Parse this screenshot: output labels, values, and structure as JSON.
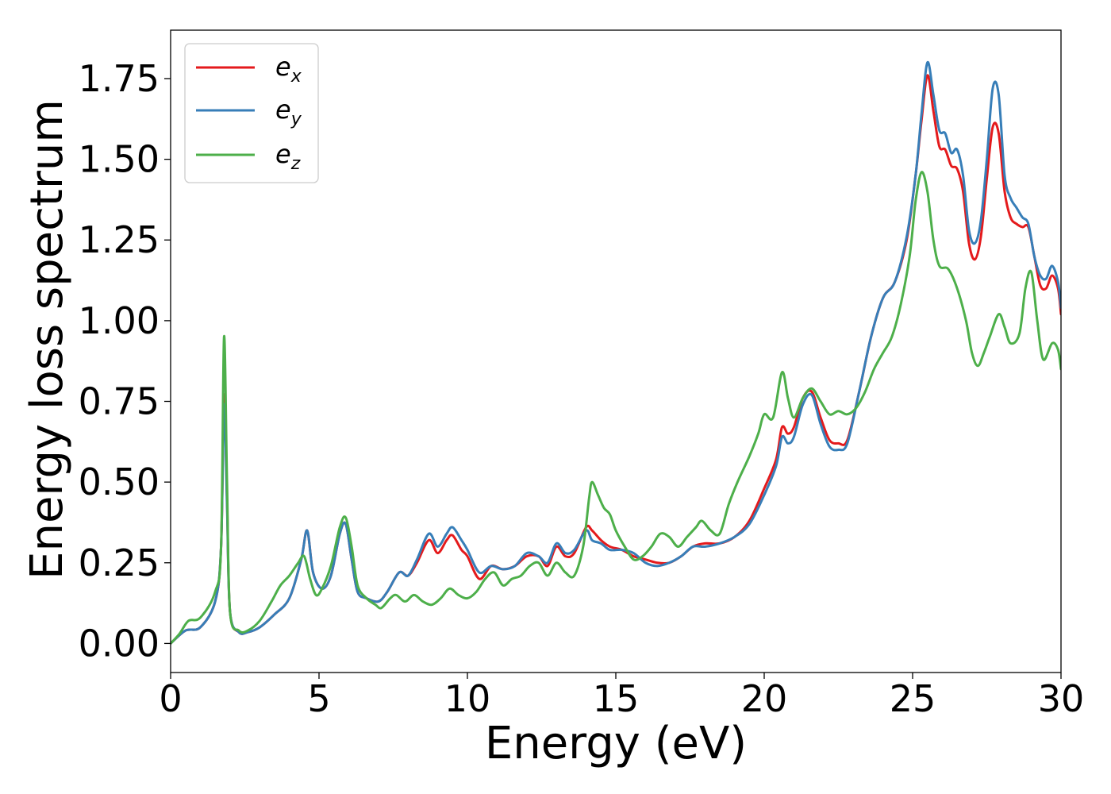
{
  "chart_data": {
    "type": "line",
    "xlabel": "Energy (eV)",
    "ylabel": "Energy loss spectrum",
    "xlim": [
      0,
      30
    ],
    "ylim": [
      -0.09,
      1.9
    ],
    "xticks": [
      0,
      5,
      10,
      15,
      20,
      25,
      30
    ],
    "xtick_labels": [
      "0",
      "5",
      "10",
      "15",
      "20",
      "25",
      "30"
    ],
    "yticks": [
      0,
      0.25,
      0.5,
      0.75,
      1.0,
      1.25,
      1.5,
      1.75
    ],
    "ytick_labels": [
      "0.00",
      "0.25",
      "0.50",
      "0.75",
      "1.00",
      "1.25",
      "1.50",
      "1.75"
    ],
    "grid": false,
    "legend_position": "top-left",
    "series": [
      {
        "name": "e_x",
        "legend_base": "e",
        "legend_sub": "x",
        "color": "#e41a1c",
        "x": [
          0,
          0.5,
          1.0,
          1.5,
          1.7,
          1.8,
          1.9,
          2.0,
          2.3,
          2.6,
          3.0,
          3.5,
          4.0,
          4.4,
          4.6,
          4.8,
          5.1,
          5.4,
          5.7,
          5.9,
          6.1,
          6.3,
          6.6,
          7.0,
          7.3,
          7.7,
          8.0,
          8.3,
          8.7,
          9.0,
          9.3,
          9.5,
          9.8,
          10.0,
          10.4,
          10.8,
          11.2,
          11.6,
          12.0,
          12.4,
          12.7,
          13.0,
          13.3,
          13.6,
          14.0,
          14.2,
          14.5,
          14.8,
          15.2,
          15.6,
          16.0,
          16.4,
          16.8,
          17.2,
          17.6,
          18.0,
          18.5,
          19.0,
          19.5,
          20.0,
          20.4,
          20.6,
          20.8,
          21.0,
          21.3,
          21.6,
          21.9,
          22.2,
          22.5,
          22.8,
          23.2,
          23.6,
          24.0,
          24.4,
          24.8,
          25.1,
          25.3,
          25.5,
          25.7,
          25.9,
          26.1,
          26.3,
          26.5,
          26.7,
          26.9,
          27.1,
          27.3,
          27.5,
          27.7,
          27.9,
          28.1,
          28.3,
          28.5,
          28.7,
          28.9,
          29.1,
          29.3,
          29.5,
          29.7,
          29.9,
          30.0
        ],
        "y": [
          0.0,
          0.04,
          0.05,
          0.13,
          0.3,
          0.77,
          0.45,
          0.1,
          0.035,
          0.035,
          0.05,
          0.09,
          0.14,
          0.26,
          0.35,
          0.22,
          0.17,
          0.21,
          0.34,
          0.37,
          0.26,
          0.16,
          0.14,
          0.13,
          0.16,
          0.22,
          0.21,
          0.25,
          0.32,
          0.28,
          0.32,
          0.335,
          0.29,
          0.27,
          0.2,
          0.24,
          0.23,
          0.24,
          0.27,
          0.27,
          0.24,
          0.3,
          0.27,
          0.28,
          0.36,
          0.35,
          0.32,
          0.3,
          0.29,
          0.27,
          0.26,
          0.25,
          0.25,
          0.27,
          0.3,
          0.31,
          0.31,
          0.33,
          0.38,
          0.48,
          0.57,
          0.67,
          0.65,
          0.67,
          0.76,
          0.78,
          0.7,
          0.63,
          0.62,
          0.63,
          0.78,
          0.95,
          1.07,
          1.12,
          1.25,
          1.45,
          1.62,
          1.76,
          1.65,
          1.54,
          1.53,
          1.48,
          1.47,
          1.4,
          1.24,
          1.19,
          1.26,
          1.44,
          1.6,
          1.58,
          1.4,
          1.32,
          1.3,
          1.29,
          1.29,
          1.2,
          1.11,
          1.1,
          1.14,
          1.1,
          1.02
        ]
      },
      {
        "name": "e_y",
        "legend_base": "e",
        "legend_sub": "y",
        "color": "#377eb8",
        "x": [
          0,
          0.5,
          1.0,
          1.5,
          1.7,
          1.8,
          1.9,
          2.0,
          2.3,
          2.6,
          3.0,
          3.5,
          4.0,
          4.4,
          4.6,
          4.8,
          5.1,
          5.4,
          5.7,
          5.9,
          6.1,
          6.3,
          6.6,
          7.0,
          7.3,
          7.7,
          8.0,
          8.3,
          8.7,
          9.0,
          9.3,
          9.5,
          9.8,
          10.0,
          10.4,
          10.8,
          11.2,
          11.6,
          12.0,
          12.4,
          12.7,
          13.0,
          13.3,
          13.6,
          14.0,
          14.2,
          14.5,
          14.8,
          15.2,
          15.6,
          16.0,
          16.4,
          16.8,
          17.2,
          17.6,
          18.0,
          18.5,
          19.0,
          19.5,
          20.0,
          20.4,
          20.6,
          20.8,
          21.0,
          21.3,
          21.6,
          21.9,
          22.2,
          22.5,
          22.8,
          23.2,
          23.6,
          24.0,
          24.4,
          24.8,
          25.1,
          25.3,
          25.5,
          25.7,
          25.9,
          26.1,
          26.3,
          26.5,
          26.7,
          26.9,
          27.1,
          27.3,
          27.5,
          27.7,
          27.9,
          28.1,
          28.3,
          28.5,
          28.7,
          28.9,
          29.1,
          29.3,
          29.5,
          29.7,
          29.9,
          30.0
        ],
        "y": [
          0.0,
          0.04,
          0.05,
          0.13,
          0.3,
          0.74,
          0.43,
          0.1,
          0.035,
          0.035,
          0.05,
          0.09,
          0.14,
          0.26,
          0.35,
          0.22,
          0.17,
          0.21,
          0.34,
          0.37,
          0.26,
          0.16,
          0.14,
          0.13,
          0.16,
          0.22,
          0.21,
          0.26,
          0.34,
          0.3,
          0.34,
          0.36,
          0.32,
          0.29,
          0.22,
          0.24,
          0.23,
          0.24,
          0.28,
          0.27,
          0.25,
          0.31,
          0.28,
          0.29,
          0.35,
          0.32,
          0.31,
          0.29,
          0.29,
          0.28,
          0.25,
          0.24,
          0.25,
          0.27,
          0.3,
          0.3,
          0.31,
          0.33,
          0.37,
          0.46,
          0.55,
          0.64,
          0.62,
          0.64,
          0.74,
          0.77,
          0.68,
          0.61,
          0.6,
          0.62,
          0.78,
          0.95,
          1.07,
          1.12,
          1.26,
          1.45,
          1.64,
          1.8,
          1.7,
          1.59,
          1.58,
          1.52,
          1.53,
          1.45,
          1.28,
          1.24,
          1.31,
          1.5,
          1.72,
          1.7,
          1.45,
          1.38,
          1.35,
          1.32,
          1.3,
          1.2,
          1.14,
          1.13,
          1.17,
          1.12,
          1.04
        ]
      },
      {
        "name": "e_z",
        "legend_base": "e",
        "legend_sub": "z",
        "color": "#4daf4a",
        "x": [
          0,
          0.3,
          0.6,
          1.0,
          1.5,
          1.7,
          1.8,
          1.9,
          2.0,
          2.3,
          2.6,
          3.0,
          3.4,
          3.7,
          4.0,
          4.3,
          4.5,
          4.7,
          4.9,
          5.1,
          5.4,
          5.7,
          5.9,
          6.1,
          6.3,
          6.6,
          6.9,
          7.1,
          7.4,
          7.6,
          7.9,
          8.2,
          8.5,
          8.8,
          9.1,
          9.4,
          9.7,
          10.0,
          10.3,
          10.6,
          10.9,
          11.2,
          11.5,
          11.8,
          12.1,
          12.4,
          12.7,
          13.0,
          13.3,
          13.6,
          13.9,
          14.1,
          14.2,
          14.4,
          14.6,
          14.8,
          15.0,
          15.3,
          15.6,
          15.9,
          16.2,
          16.5,
          16.8,
          17.1,
          17.4,
          17.7,
          17.9,
          18.2,
          18.5,
          18.8,
          19.1,
          19.5,
          19.8,
          20.0,
          20.3,
          20.6,
          20.8,
          21.0,
          21.3,
          21.6,
          21.9,
          22.2,
          22.5,
          22.8,
          23.1,
          23.4,
          23.7,
          24.0,
          24.3,
          24.6,
          24.9,
          25.1,
          25.3,
          25.5,
          25.7,
          25.9,
          26.2,
          26.5,
          26.8,
          27.0,
          27.2,
          27.4,
          27.6,
          27.9,
          28.1,
          28.3,
          28.6,
          28.8,
          29.0,
          29.2,
          29.4,
          29.7,
          29.9,
          30.0
        ],
        "y": [
          0.0,
          0.03,
          0.07,
          0.08,
          0.16,
          0.3,
          0.95,
          0.5,
          0.1,
          0.04,
          0.04,
          0.07,
          0.13,
          0.18,
          0.21,
          0.25,
          0.27,
          0.2,
          0.15,
          0.17,
          0.24,
          0.36,
          0.39,
          0.3,
          0.18,
          0.14,
          0.12,
          0.11,
          0.14,
          0.15,
          0.13,
          0.15,
          0.13,
          0.12,
          0.14,
          0.17,
          0.15,
          0.14,
          0.16,
          0.2,
          0.22,
          0.18,
          0.2,
          0.21,
          0.24,
          0.25,
          0.21,
          0.25,
          0.22,
          0.21,
          0.3,
          0.45,
          0.5,
          0.46,
          0.42,
          0.4,
          0.35,
          0.3,
          0.26,
          0.27,
          0.3,
          0.34,
          0.33,
          0.3,
          0.33,
          0.36,
          0.38,
          0.35,
          0.34,
          0.43,
          0.5,
          0.58,
          0.65,
          0.71,
          0.7,
          0.84,
          0.76,
          0.7,
          0.76,
          0.79,
          0.75,
          0.71,
          0.72,
          0.71,
          0.73,
          0.78,
          0.85,
          0.9,
          0.95,
          1.05,
          1.2,
          1.37,
          1.46,
          1.4,
          1.25,
          1.17,
          1.16,
          1.1,
          1.0,
          0.9,
          0.86,
          0.9,
          0.95,
          1.02,
          0.98,
          0.93,
          0.96,
          1.1,
          1.15,
          1.0,
          0.88,
          0.93,
          0.91,
          0.85
        ]
      }
    ]
  }
}
